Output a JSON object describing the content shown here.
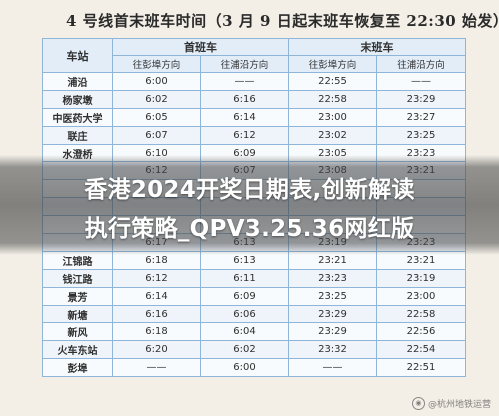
{
  "title": "4 号线首末班车时间（3 月 9 日起末班车恢复至 22:30 始发）",
  "table": {
    "station_header": "车站",
    "first_train_header": "首班车",
    "last_train_header": "末班车",
    "direction_headers": [
      "往彭埠方向",
      "往浦沿方向",
      "往彭埠方向",
      "往浦沿方向"
    ],
    "rows": [
      {
        "station": "浦沿",
        "first_pengbu": "6:00",
        "first_puyan": "——",
        "last_pengbu": "22:55",
        "last_puyan": "——"
      },
      {
        "station": "杨家墩",
        "first_pengbu": "6:02",
        "first_puyan": "6:16",
        "last_pengbu": "22:58",
        "last_puyan": "23:29"
      },
      {
        "station": "中医药大学",
        "first_pengbu": "6:05",
        "first_puyan": "6:14",
        "last_pengbu": "23:00",
        "last_puyan": "23:27"
      },
      {
        "station": "联庄",
        "first_pengbu": "6:07",
        "first_puyan": "6:12",
        "last_pengbu": "23:02",
        "last_puyan": "23:25"
      },
      {
        "station": "水澄桥",
        "first_pengbu": "6:10",
        "first_puyan": "6:09",
        "last_pengbu": "23:05",
        "last_puyan": "23:23"
      },
      {
        "station": "",
        "first_pengbu": "6:12",
        "first_puyan": "6:07",
        "last_pengbu": "23:08",
        "last_puyan": "23:21"
      },
      {
        "station": "",
        "first_pengbu": "",
        "first_puyan": "",
        "last_pengbu": "",
        "last_puyan": ""
      },
      {
        "station": "",
        "first_pengbu": "",
        "first_puyan": "",
        "last_pengbu": "",
        "last_puyan": ""
      },
      {
        "station": "",
        "first_pengbu": "",
        "first_puyan": "",
        "last_pengbu": "",
        "last_puyan": ""
      },
      {
        "station": "",
        "first_pengbu": "6:17",
        "first_puyan": "6:13",
        "last_pengbu": "23:19",
        "last_puyan": "23:23"
      },
      {
        "station": "江锦路",
        "first_pengbu": "6:18",
        "first_puyan": "6:13",
        "last_pengbu": "23:21",
        "last_puyan": "23:21"
      },
      {
        "station": "钱江路",
        "first_pengbu": "6:12",
        "first_puyan": "6:11",
        "last_pengbu": "23:23",
        "last_puyan": "23:19"
      },
      {
        "station": "景芳",
        "first_pengbu": "6:14",
        "first_puyan": "6:09",
        "last_pengbu": "23:25",
        "last_puyan": "23:00"
      },
      {
        "station": "新塘",
        "first_pengbu": "6:16",
        "first_puyan": "6:06",
        "last_pengbu": "23:29",
        "last_puyan": "22:58"
      },
      {
        "station": "新风",
        "first_pengbu": "6:18",
        "first_puyan": "6:04",
        "last_pengbu": "23:29",
        "last_puyan": "22:56"
      },
      {
        "station": "火车东站",
        "first_pengbu": "6:20",
        "first_puyan": "6:02",
        "last_pengbu": "23:32",
        "last_puyan": "22:54"
      },
      {
        "station": "彭埠",
        "first_pengbu": "——",
        "first_puyan": "6:00",
        "last_pengbu": "——",
        "last_puyan": "22:51"
      }
    ]
  },
  "banner": {
    "line1": "香港2024开奖日期表,创新解读",
    "line2": "执行策略_QPV3.25.36网红版"
  },
  "watermark": {
    "text": "@杭州地铁运营"
  }
}
